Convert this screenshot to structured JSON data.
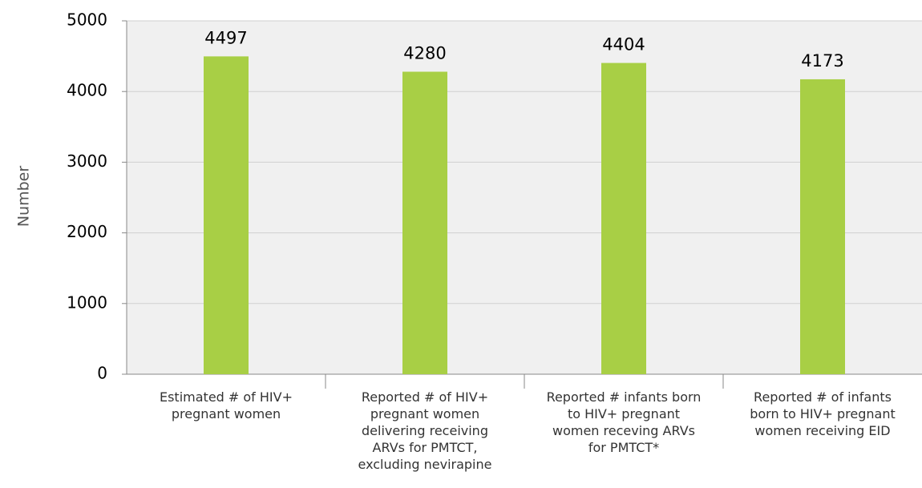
{
  "chart_data": {
    "type": "bar",
    "y_label": "Number",
    "categories": [
      "Estimated # of HIV+ pregnant women",
      "Reported # of HIV+ pregnant women delivering receiving ARVs for PMTCT, excluding nevirapine",
      "Reported # infants born to HIV+ pregnant women receving ARVs for PMTCT*",
      "Reported # of infants born to HIV+ pregnant women receiving EID"
    ],
    "values": [
      4497,
      4280,
      4404,
      4173
    ],
    "color": "#a8cf45",
    "ylim": [
      0,
      5000
    ],
    "yticks": [
      0,
      1000,
      2000,
      3000,
      4000,
      5000
    ],
    "grid": true
  }
}
